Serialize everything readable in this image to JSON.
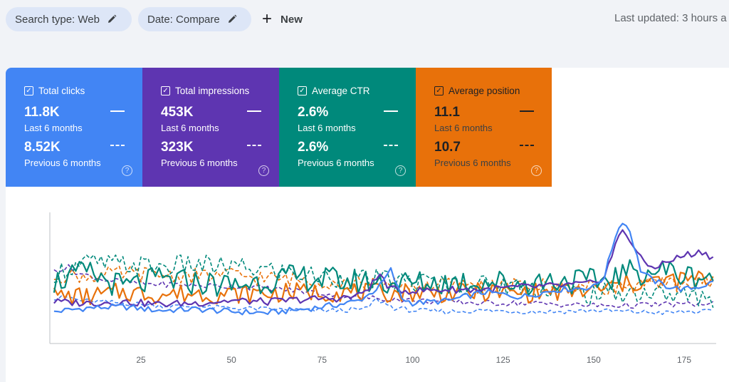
{
  "toolbar": {
    "search_type_label": "Search type: Web",
    "date_label": "Date: Compare",
    "new_label": "New",
    "last_updated": "Last updated: 3 hours a"
  },
  "icons": {
    "edit": "pencil-icon",
    "add": "plus-icon",
    "checkbox": "checkbox-checked-icon",
    "help": "help-circle-icon"
  },
  "cards": [
    {
      "key": "clicks",
      "title": "Total clicks",
      "value_current": "11.8K",
      "label_current": "Last 6 months",
      "value_previous": "8.52K",
      "label_previous": "Previous 6 months",
      "color": "#4285f4"
    },
    {
      "key": "impressions",
      "title": "Total impressions",
      "value_current": "453K",
      "label_current": "Last 6 months",
      "value_previous": "323K",
      "label_previous": "Previous 6 months",
      "color": "#5e35b1"
    },
    {
      "key": "ctr",
      "title": "Average CTR",
      "value_current": "2.6%",
      "label_current": "Last 6 months",
      "value_previous": "2.6%",
      "label_previous": "Previous 6 months",
      "color": "#00897b"
    },
    {
      "key": "position",
      "title": "Average position",
      "value_current": "11.1",
      "label_current": "Last 6 months",
      "value_previous": "10.7",
      "label_previous": "Previous 6 months",
      "color": "#e8710a"
    }
  ],
  "chart_data": {
    "type": "line",
    "title": "",
    "xlabel": "",
    "ylabel": "",
    "xlim": [
      1,
      183
    ],
    "ylim": [
      0,
      100
    ],
    "x_ticks": [
      25,
      50,
      75,
      100,
      125,
      150,
      175
    ],
    "grid": false,
    "legend": "none",
    "series": [
      {
        "metric": "clicks",
        "period": "current",
        "color": "#4285f4",
        "style": "solid",
        "width": 2.2,
        "points": [
          [
            1,
            26
          ],
          [
            10,
            29
          ],
          [
            20,
            30
          ],
          [
            30,
            27
          ],
          [
            40,
            28
          ],
          [
            50,
            26
          ],
          [
            60,
            25
          ],
          [
            70,
            28
          ],
          [
            80,
            32
          ],
          [
            85,
            35
          ],
          [
            88,
            40
          ],
          [
            91,
            47
          ],
          [
            94,
            60
          ],
          [
            97,
            37
          ],
          [
            100,
            33
          ],
          [
            110,
            35
          ],
          [
            120,
            42
          ],
          [
            130,
            38
          ],
          [
            140,
            44
          ],
          [
            150,
            46
          ],
          [
            153,
            55
          ],
          [
            156,
            88
          ],
          [
            158,
            100
          ],
          [
            160,
            92
          ],
          [
            163,
            60
          ],
          [
            166,
            52
          ],
          [
            170,
            47
          ],
          [
            175,
            44
          ],
          [
            180,
            47
          ],
          [
            183,
            50
          ]
        ]
      },
      {
        "metric": "clicks",
        "period": "previous",
        "color": "#4285f4",
        "style": "dashed",
        "width": 1.6,
        "points": [
          [
            1,
            36
          ],
          [
            5,
            38
          ],
          [
            8,
            35
          ],
          [
            20,
            33
          ],
          [
            30,
            31
          ],
          [
            40,
            30
          ],
          [
            50,
            29
          ],
          [
            60,
            28
          ],
          [
            70,
            27
          ],
          [
            80,
            27
          ],
          [
            87,
            28
          ],
          [
            90,
            36
          ],
          [
            95,
            29
          ],
          [
            100,
            27
          ],
          [
            110,
            26
          ],
          [
            120,
            27
          ],
          [
            130,
            26
          ],
          [
            140,
            26
          ],
          [
            150,
            27
          ],
          [
            160,
            26
          ],
          [
            170,
            25
          ],
          [
            175,
            26
          ],
          [
            183,
            26
          ]
        ]
      },
      {
        "metric": "impressions",
        "period": "current",
        "color": "#5e35b1",
        "style": "solid",
        "width": 2.2,
        "points": [
          [
            1,
            34
          ],
          [
            10,
            33
          ],
          [
            20,
            34
          ],
          [
            30,
            32
          ],
          [
            40,
            33
          ],
          [
            50,
            35
          ],
          [
            60,
            34
          ],
          [
            70,
            36
          ],
          [
            80,
            37
          ],
          [
            85,
            39
          ],
          [
            88,
            46
          ],
          [
            91,
            56
          ],
          [
            94,
            44
          ],
          [
            100,
            43
          ],
          [
            110,
            44
          ],
          [
            120,
            44
          ],
          [
            130,
            46
          ],
          [
            140,
            47
          ],
          [
            150,
            49
          ],
          [
            153,
            55
          ],
          [
            156,
            80
          ],
          [
            158,
            93
          ],
          [
            160,
            85
          ],
          [
            163,
            69
          ],
          [
            166,
            62
          ],
          [
            170,
            66
          ],
          [
            175,
            72
          ],
          [
            180,
            75
          ],
          [
            183,
            70
          ]
        ]
      },
      {
        "metric": "impressions",
        "period": "previous",
        "color": "#5e35b1",
        "style": "dashed",
        "width": 1.6,
        "points": [
          [
            1,
            60
          ],
          [
            5,
            62
          ],
          [
            8,
            57
          ],
          [
            15,
            52
          ],
          [
            25,
            49
          ],
          [
            35,
            48
          ],
          [
            45,
            47
          ],
          [
            55,
            46
          ],
          [
            65,
            44
          ],
          [
            75,
            41
          ],
          [
            85,
            37
          ],
          [
            90,
            37
          ],
          [
            100,
            35
          ],
          [
            110,
            34
          ],
          [
            120,
            33
          ],
          [
            130,
            33
          ],
          [
            140,
            32
          ],
          [
            150,
            31
          ],
          [
            160,
            31
          ],
          [
            170,
            32
          ],
          [
            183,
            32
          ]
        ]
      },
      {
        "metric": "ctr",
        "period": "current",
        "color": "#00897b",
        "style": "solid",
        "width": 2.2,
        "points": [
          [
            1,
            50
          ],
          [
            10,
            58
          ],
          [
            20,
            46
          ],
          [
            30,
            52
          ],
          [
            40,
            50
          ],
          [
            50,
            47
          ],
          [
            60,
            52
          ],
          [
            70,
            54
          ],
          [
            80,
            51
          ],
          [
            90,
            50
          ],
          [
            100,
            49
          ],
          [
            110,
            50
          ],
          [
            120,
            51
          ],
          [
            130,
            49
          ],
          [
            140,
            52
          ],
          [
            150,
            50
          ],
          [
            160,
            58
          ],
          [
            170,
            60
          ],
          [
            175,
            55
          ],
          [
            183,
            55
          ]
        ]
      },
      {
        "metric": "ctr",
        "period": "previous",
        "color": "#00897b",
        "style": "dashed",
        "width": 1.6,
        "points": [
          [
            1,
            58
          ],
          [
            10,
            66
          ],
          [
            20,
            64
          ],
          [
            30,
            63
          ],
          [
            40,
            64
          ],
          [
            50,
            62
          ],
          [
            60,
            60
          ],
          [
            70,
            56
          ],
          [
            80,
            53
          ],
          [
            90,
            52
          ],
          [
            100,
            50
          ],
          [
            110,
            49
          ],
          [
            120,
            48
          ],
          [
            130,
            47
          ],
          [
            140,
            44
          ],
          [
            150,
            40
          ],
          [
            160,
            42
          ],
          [
            170,
            40
          ],
          [
            183,
            37
          ]
        ]
      },
      {
        "metric": "position",
        "period": "current",
        "color": "#e8710a",
        "style": "solid",
        "width": 2.2,
        "points": [
          [
            1,
            39
          ],
          [
            10,
            38
          ],
          [
            20,
            42
          ],
          [
            30,
            40
          ],
          [
            40,
            41
          ],
          [
            50,
            40
          ],
          [
            60,
            41
          ],
          [
            70,
            42
          ],
          [
            80,
            42
          ],
          [
            90,
            41
          ],
          [
            100,
            42
          ],
          [
            110,
            41
          ],
          [
            120,
            42
          ],
          [
            130,
            41
          ],
          [
            140,
            42
          ],
          [
            150,
            43
          ],
          [
            160,
            49
          ],
          [
            170,
            51
          ],
          [
            175,
            52
          ],
          [
            183,
            53
          ]
        ]
      },
      {
        "metric": "position",
        "period": "previous",
        "color": "#e8710a",
        "style": "dashed",
        "width": 1.6,
        "points": [
          [
            1,
            56
          ],
          [
            10,
            55
          ],
          [
            20,
            57
          ],
          [
            30,
            56
          ],
          [
            40,
            55
          ],
          [
            50,
            56
          ],
          [
            60,
            53
          ],
          [
            70,
            52
          ],
          [
            80,
            50
          ],
          [
            90,
            48
          ],
          [
            100,
            47
          ],
          [
            110,
            48
          ],
          [
            120,
            47
          ],
          [
            130,
            47
          ],
          [
            140,
            47
          ],
          [
            150,
            46
          ],
          [
            160,
            47
          ],
          [
            170,
            48
          ],
          [
            183,
            50
          ]
        ]
      }
    ]
  }
}
